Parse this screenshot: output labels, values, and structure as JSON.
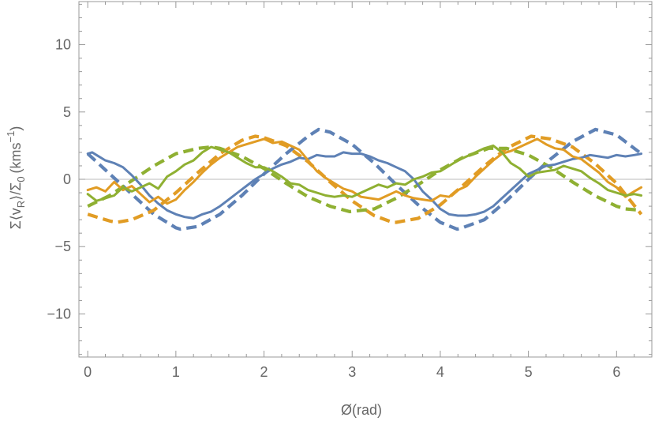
{
  "chart_data": {
    "type": "line",
    "title": "",
    "xlabel": "Ø(rad)",
    "ylabel": "Σ⟨v_R⟩/Σ_0 (kms^-1)",
    "ylabel_parts": {
      "a": "Σ⟨v",
      "a_sub": "R",
      "b": "⟩/Σ",
      "b_sub": "0",
      "c": "(kms",
      "c_sup": "−1",
      "d": ")"
    },
    "xlim": [
      -0.1,
      6.4
    ],
    "ylim": [
      -13.2,
      13.2
    ],
    "xticks": [
      0,
      1,
      2,
      3,
      4,
      5,
      6
    ],
    "yticks": [
      10,
      5,
      0,
      -5,
      -10
    ],
    "ytick_labels": [
      "10",
      "5",
      "0",
      "−5",
      "−10"
    ],
    "zero_line": true,
    "grid": false,
    "legend": "none",
    "colors": {
      "blue": "#5e81b5",
      "orange": "#e19c24",
      "green": "#8fb032",
      "zero_line": "#bbbbbb",
      "frame": "#999999",
      "text": "#666666"
    },
    "series": [
      {
        "style": "dashed",
        "color": "blue",
        "x": [
          0,
          0.25,
          0.5,
          0.75,
          1.0,
          1.05,
          1.25,
          1.5,
          1.75,
          2.0,
          2.25,
          2.5,
          2.62,
          2.75,
          3.0,
          3.25,
          3.5,
          3.75,
          4.0,
          4.19,
          4.25,
          4.5,
          4.75,
          5.0,
          5.25,
          5.5,
          5.76,
          6.0,
          6.28
        ],
        "y": [
          1.9,
          0.4,
          -1.1,
          -2.6,
          -3.6,
          -3.7,
          -3.5,
          -2.6,
          -1.2,
          0.4,
          1.9,
          3.2,
          3.7,
          3.5,
          2.6,
          1.2,
          -0.4,
          -1.9,
          -3.2,
          -3.7,
          -3.6,
          -3.0,
          -1.6,
          0.0,
          1.5,
          2.8,
          3.7,
          3.3,
          1.9
        ]
      },
      {
        "style": "dashed",
        "color": "orange",
        "x": [
          0,
          0.25,
          0.33,
          0.5,
          0.75,
          1.0,
          1.25,
          1.5,
          1.75,
          1.9,
          2.0,
          2.25,
          2.5,
          2.75,
          3.0,
          3.25,
          3.46,
          3.5,
          3.75,
          4.0,
          4.25,
          4.5,
          4.75,
          5.03,
          5.25,
          5.5,
          5.75,
          6.0,
          6.28
        ],
        "y": [
          -2.6,
          -3.1,
          -3.2,
          -3.0,
          -2.3,
          -1.0,
          0.5,
          1.9,
          2.9,
          3.2,
          3.1,
          2.5,
          1.3,
          -0.2,
          -1.6,
          -2.7,
          -3.2,
          -3.2,
          -2.9,
          -1.9,
          -0.5,
          1.0,
          2.3,
          3.2,
          3.0,
          2.4,
          1.2,
          -0.3,
          -2.6
        ]
      },
      {
        "style": "dashed",
        "color": "green",
        "x": [
          0,
          0.25,
          0.5,
          0.75,
          1.0,
          1.25,
          1.4,
          1.5,
          1.75,
          2.0,
          2.25,
          2.5,
          2.75,
          2.97,
          3.25,
          3.5,
          3.75,
          4.0,
          4.25,
          4.55,
          4.75,
          5.0,
          5.25,
          5.5,
          5.75,
          6.0,
          6.1,
          6.28
        ],
        "y": [
          -2.0,
          -1.2,
          -0.1,
          1.0,
          1.9,
          2.3,
          2.4,
          2.3,
          1.7,
          0.8,
          -0.3,
          -1.3,
          -2.0,
          -2.4,
          -2.2,
          -1.4,
          -0.4,
          0.7,
          1.6,
          2.3,
          2.3,
          1.8,
          0.9,
          -0.2,
          -1.2,
          -2.0,
          -2.2,
          -2.3
        ]
      },
      {
        "style": "solid",
        "color": "blue",
        "x": [
          0,
          0.05,
          0.1,
          0.2,
          0.3,
          0.4,
          0.5,
          0.6,
          0.7,
          0.8,
          0.9,
          1.0,
          1.1,
          1.2,
          1.3,
          1.4,
          1.5,
          1.6,
          1.7,
          1.8,
          1.9,
          2.0,
          2.1,
          2.2,
          2.3,
          2.4,
          2.5,
          2.6,
          2.7,
          2.8,
          2.9,
          3.0,
          3.1,
          3.2,
          3.3,
          3.4,
          3.5,
          3.6,
          3.7,
          3.8,
          3.9,
          4.0,
          4.1,
          4.2,
          4.3,
          4.4,
          4.5,
          4.6,
          4.7,
          4.8,
          4.9,
          5.0,
          5.1,
          5.2,
          5.3,
          5.4,
          5.5,
          5.6,
          5.7,
          5.8,
          5.9,
          6.0,
          6.1,
          6.2,
          6.28
        ],
        "y": [
          1.9,
          2.0,
          1.8,
          1.4,
          1.2,
          0.9,
          0.3,
          -0.4,
          -1.2,
          -1.8,
          -2.3,
          -2.6,
          -2.8,
          -2.9,
          -2.6,
          -2.4,
          -2.0,
          -1.5,
          -1.0,
          -0.5,
          0.0,
          0.4,
          0.8,
          1.1,
          1.3,
          1.6,
          1.5,
          1.8,
          1.7,
          1.7,
          2.0,
          1.9,
          1.9,
          1.7,
          1.4,
          1.2,
          0.9,
          0.6,
          0.0,
          -0.9,
          -1.5,
          -2.2,
          -2.6,
          -2.7,
          -2.7,
          -2.6,
          -2.4,
          -2.0,
          -1.4,
          -0.8,
          -0.2,
          0.4,
          0.7,
          1.0,
          1.1,
          1.3,
          1.5,
          1.6,
          1.8,
          1.7,
          1.6,
          1.8,
          1.7,
          1.8,
          1.9
        ]
      },
      {
        "style": "solid",
        "color": "orange",
        "x": [
          0,
          0.1,
          0.2,
          0.3,
          0.4,
          0.5,
          0.6,
          0.7,
          0.8,
          0.9,
          1.0,
          1.1,
          1.2,
          1.3,
          1.4,
          1.5,
          1.6,
          1.7,
          1.8,
          1.9,
          2.0,
          2.1,
          2.2,
          2.3,
          2.4,
          2.5,
          2.6,
          2.7,
          2.8,
          2.9,
          3.0,
          3.1,
          3.2,
          3.3,
          3.4,
          3.5,
          3.6,
          3.7,
          3.8,
          3.9,
          4.0,
          4.1,
          4.2,
          4.3,
          4.4,
          4.5,
          4.6,
          4.7,
          4.8,
          4.9,
          5.0,
          5.1,
          5.2,
          5.3,
          5.4,
          5.5,
          5.6,
          5.7,
          5.8,
          5.9,
          6.0,
          6.1,
          6.2,
          6.28
        ],
        "y": [
          -0.8,
          -0.6,
          -0.9,
          -0.2,
          -0.8,
          -0.5,
          -1.1,
          -1.7,
          -1.3,
          -1.8,
          -1.5,
          -0.8,
          -0.2,
          0.5,
          1.1,
          1.6,
          2.0,
          2.4,
          2.6,
          2.8,
          3.0,
          2.7,
          2.8,
          2.5,
          2.2,
          1.4,
          0.6,
          0.1,
          -0.3,
          -0.7,
          -0.9,
          -1.3,
          -1.4,
          -1.5,
          -1.2,
          -0.9,
          -1.2,
          -1.4,
          -1.5,
          -1.6,
          -1.2,
          -1.3,
          -0.8,
          -0.5,
          0.2,
          0.8,
          1.4,
          1.9,
          2.1,
          2.4,
          2.7,
          3.0,
          2.6,
          2.3,
          2.2,
          1.7,
          1.5,
          1.0,
          0.5,
          -0.2,
          -0.6,
          -1.3,
          -0.9,
          -0.6
        ]
      },
      {
        "style": "solid",
        "color": "green",
        "x": [
          0,
          0.1,
          0.2,
          0.3,
          0.4,
          0.5,
          0.6,
          0.7,
          0.8,
          0.9,
          1.0,
          1.1,
          1.2,
          1.3,
          1.4,
          1.5,
          1.6,
          1.7,
          1.8,
          1.9,
          2.0,
          2.1,
          2.2,
          2.3,
          2.4,
          2.5,
          2.6,
          2.7,
          2.8,
          2.9,
          3.0,
          3.1,
          3.2,
          3.3,
          3.4,
          3.5,
          3.6,
          3.7,
          3.8,
          3.9,
          4.0,
          4.1,
          4.2,
          4.3,
          4.4,
          4.5,
          4.6,
          4.7,
          4.8,
          4.9,
          5.0,
          5.1,
          5.2,
          5.3,
          5.4,
          5.5,
          5.6,
          5.7,
          5.8,
          5.9,
          6.0,
          6.1,
          6.2,
          6.28
        ],
        "y": [
          -1.1,
          -1.6,
          -1.4,
          -1.2,
          -0.6,
          -0.9,
          -0.6,
          -0.3,
          -0.7,
          0.2,
          0.6,
          1.1,
          1.4,
          2.0,
          2.4,
          2.2,
          2.0,
          1.6,
          1.2,
          0.9,
          0.9,
          0.6,
          0.2,
          -0.3,
          -0.4,
          -0.8,
          -1.0,
          -1.2,
          -1.3,
          -1.2,
          -1.3,
          -1.0,
          -0.7,
          -0.4,
          -0.6,
          -0.3,
          -0.4,
          0.0,
          0.2,
          0.5,
          0.6,
          1.0,
          1.4,
          1.7,
          2.0,
          2.3,
          2.5,
          2.0,
          1.2,
          0.8,
          0.2,
          0.5,
          0.6,
          0.7,
          1.0,
          0.8,
          0.6,
          0.1,
          -0.3,
          -0.8,
          -1.0,
          -1.2,
          -1.1,
          -1.2
        ]
      }
    ]
  }
}
